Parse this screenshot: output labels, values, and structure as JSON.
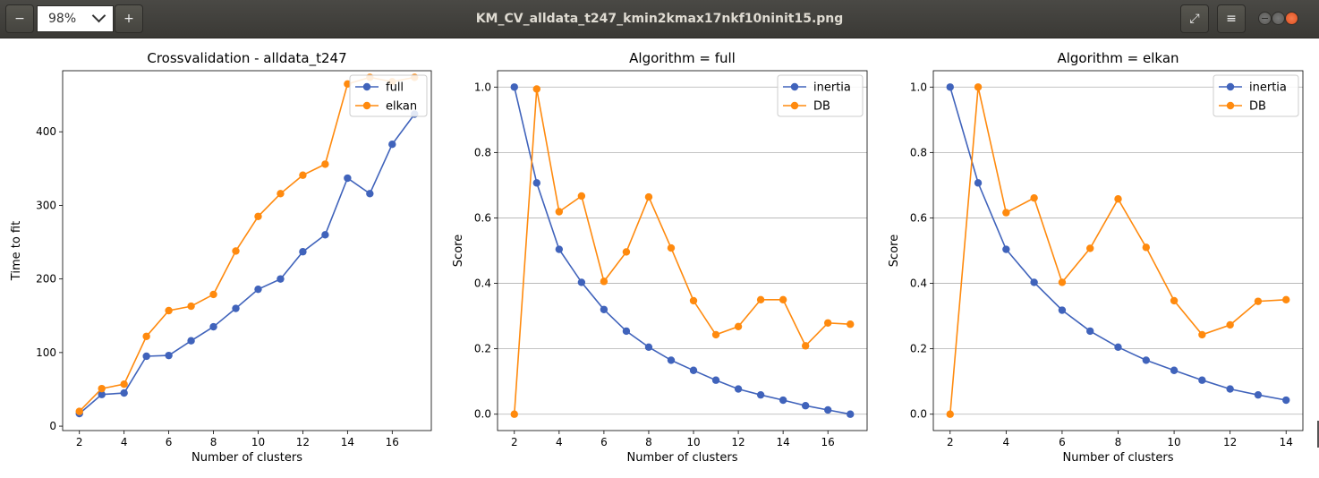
{
  "window": {
    "title": "KM_CV_alldata_t247_kmin2kmax17nkf10ninit15.png",
    "zoom": "98%",
    "zoom_out_label": "−",
    "zoom_in_label": "+",
    "fullscreen_icon": "⤢",
    "menu_icon": "≡"
  },
  "colors": {
    "blue": "#4063bb",
    "orange": "#ff8a0e"
  },
  "chart_data": [
    {
      "type": "line",
      "title": "Crossvalidation - alldata_t247",
      "xlabel": "Number of clusters",
      "ylabel": "Time to fit",
      "xlim": [
        1.25,
        17.75
      ],
      "ylim": [
        -6,
        483
      ],
      "xticks": [
        2,
        4,
        6,
        8,
        10,
        12,
        14,
        16
      ],
      "yticks": [
        0,
        100,
        200,
        300,
        400
      ],
      "ytick_labels": [
        "0",
        "100",
        "200",
        "300",
        "400"
      ],
      "grid": false,
      "legend": "top-right",
      "x": [
        2,
        3,
        4,
        5,
        6,
        7,
        8,
        9,
        10,
        11,
        12,
        13,
        14,
        15,
        16,
        17
      ],
      "series": [
        {
          "name": "full",
          "color": "#4063bb",
          "values": [
            17,
            43,
            45,
            95,
            96,
            116,
            135,
            160,
            186,
            200,
            237,
            260,
            337,
            316,
            383,
            424
          ]
        },
        {
          "name": "elkan",
          "color": "#ff8a0e",
          "values": [
            20,
            51,
            57,
            122,
            157,
            163,
            179,
            238,
            285,
            316,
            341,
            356,
            465,
            474,
            468,
            474
          ]
        }
      ]
    },
    {
      "type": "line",
      "title": "Algorithm = full",
      "xlabel": "Number of clusters",
      "ylabel": "Score",
      "xlim": [
        1.25,
        17.75
      ],
      "ylim": [
        -0.05,
        1.05
      ],
      "xticks": [
        2,
        4,
        6,
        8,
        10,
        12,
        14,
        16
      ],
      "yticks": [
        0,
        0.2,
        0.4,
        0.6,
        0.8,
        1.0
      ],
      "ytick_labels": [
        "0.0",
        "0.2",
        "0.4",
        "0.6",
        "0.8",
        "1.0"
      ],
      "grid": true,
      "legend": "top-right",
      "x": [
        2,
        3,
        4,
        5,
        6,
        7,
        8,
        9,
        10,
        11,
        12,
        13,
        14,
        15,
        16,
        17
      ],
      "series": [
        {
          "name": "inertia",
          "color": "#4063bb",
          "values": [
            1.0,
            0.707,
            0.504,
            0.403,
            0.32,
            0.254,
            0.205,
            0.165,
            0.134,
            0.104,
            0.077,
            0.059,
            0.043,
            0.026,
            0.013,
            0.0
          ]
        },
        {
          "name": "DB",
          "color": "#ff8a0e",
          "values": [
            0.0,
            0.994,
            0.619,
            0.667,
            0.406,
            0.496,
            0.664,
            0.508,
            0.347,
            0.243,
            0.268,
            0.35,
            0.35,
            0.209,
            0.279,
            0.275
          ]
        }
      ]
    },
    {
      "type": "line",
      "title": "Algorithm = elkan",
      "xlabel": "Number of clusters",
      "ylabel": "Score",
      "xlim": [
        1.4,
        14.6
      ],
      "ylim": [
        -0.05,
        1.05
      ],
      "xticks": [
        2,
        4,
        6,
        8,
        10,
        12,
        14
      ],
      "yticks": [
        0,
        0.2,
        0.4,
        0.6,
        0.8,
        1.0
      ],
      "ytick_labels": [
        "0.0",
        "0.2",
        "0.4",
        "0.6",
        "0.8",
        "1.0"
      ],
      "grid": true,
      "legend": "top-right",
      "x": [
        2,
        3,
        4,
        5,
        6,
        7,
        8,
        9,
        10,
        11,
        12,
        13,
        14
      ],
      "series": [
        {
          "name": "inertia",
          "color": "#4063bb",
          "values": [
            1.0,
            0.707,
            0.504,
            0.403,
            0.318,
            0.254,
            0.205,
            0.165,
            0.134,
            0.104,
            0.077,
            0.059,
            0.043
          ]
        },
        {
          "name": "DB",
          "color": "#ff8a0e",
          "values": [
            0.0,
            1.0,
            0.616,
            0.661,
            0.403,
            0.507,
            0.658,
            0.51,
            0.347,
            0.243,
            0.273,
            0.345,
            0.35
          ]
        }
      ]
    }
  ]
}
